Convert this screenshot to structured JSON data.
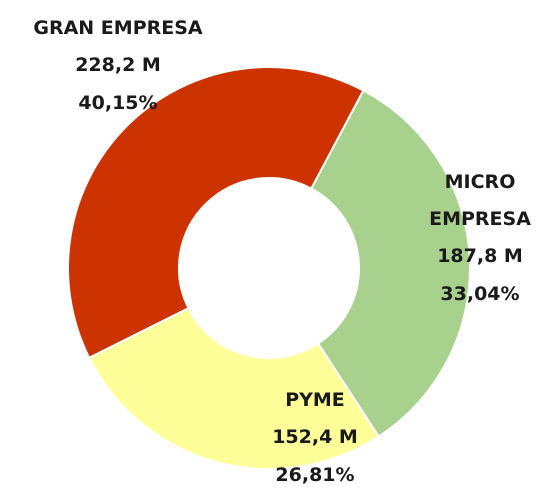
{
  "chart_data": {
    "type": "donut",
    "categories": [
      "MICRO EMPRESA",
      "PYME",
      "GRAN EMPRESA"
    ],
    "values": [
      187.8,
      152.4,
      228.2
    ],
    "value_labels": [
      "187,8 M",
      "152,4 M",
      "228,2 M"
    ],
    "percentages": [
      33.04,
      26.81,
      40.15
    ],
    "percentage_labels": [
      "33,04%",
      "26,81%",
      "40,15%"
    ],
    "colors": [
      "#a9d18e",
      "#ffff99",
      "#cc3300"
    ]
  }
}
